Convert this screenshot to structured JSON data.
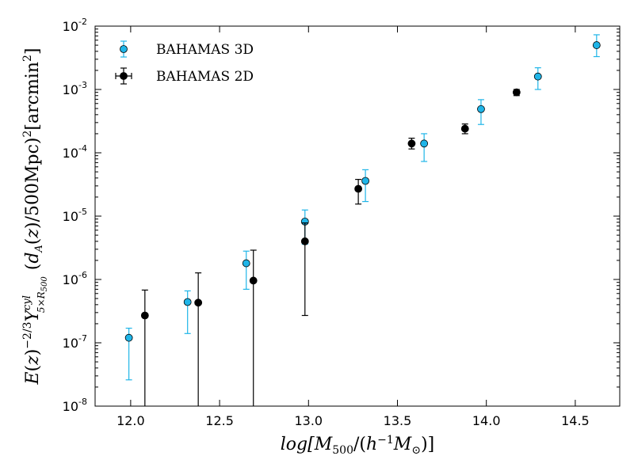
{
  "chart_data": {
    "type": "scatter",
    "title": "",
    "xlabel": "log[M_500/(h^-1 M_sun)]",
    "ylabel": "E(z)^-2/3 Y^cyl_5xR500 (d_A(z)/500Mpc)^2 [arcmin^2]",
    "xscale": "linear",
    "yscale": "log",
    "xlim": [
      11.8,
      14.75
    ],
    "ylim": [
      1e-08,
      0.01
    ],
    "x_ticks": [
      12.0,
      12.5,
      13.0,
      13.5,
      14.0,
      14.5
    ],
    "x_tick_labels": [
      "12.0",
      "12.5",
      "13.0",
      "13.5",
      "14.0",
      "14.5"
    ],
    "y_ticks": [
      1e-08,
      1e-07,
      1e-06,
      1e-05,
      0.0001,
      0.001,
      0.01
    ],
    "y_tick_labels": [
      {
        "base": "10",
        "exp": "-8"
      },
      {
        "base": "10",
        "exp": "-7"
      },
      {
        "base": "10",
        "exp": "-6"
      },
      {
        "base": "10",
        "exp": "-5"
      },
      {
        "base": "10",
        "exp": "-4"
      },
      {
        "base": "10",
        "exp": "-3"
      },
      {
        "base": "10",
        "exp": "-2"
      }
    ],
    "legend_position": "top-left",
    "series": [
      {
        "name": "BAHAMAS 3D",
        "color": "#1fb5e8",
        "marker": "circle",
        "points": [
          {
            "x": 11.99,
            "y": 1.2e-07,
            "ylo": 2.6e-08,
            "yhi": 1.7e-07
          },
          {
            "x": 12.32,
            "y": 4.4e-07,
            "ylo": 1.4e-07,
            "yhi": 6.6e-07
          },
          {
            "x": 12.65,
            "y": 1.8e-06,
            "ylo": 7e-07,
            "yhi": 2.8e-06
          },
          {
            "x": 12.98,
            "y": 8.2e-06,
            "ylo": 3.6e-06,
            "yhi": 1.25e-05
          },
          {
            "x": 13.32,
            "y": 3.6e-05,
            "ylo": 1.7e-05,
            "yhi": 5.4e-05
          },
          {
            "x": 13.65,
            "y": 0.00014,
            "ylo": 7.3e-05,
            "yhi": 0.0002
          },
          {
            "x": 13.97,
            "y": 0.00049,
            "ylo": 0.00028,
            "yhi": 0.00069
          },
          {
            "x": 14.29,
            "y": 0.0016,
            "ylo": 0.001,
            "yhi": 0.0022
          },
          {
            "x": 14.62,
            "y": 0.005,
            "ylo": 0.0033,
            "yhi": 0.0073
          }
        ]
      },
      {
        "name": "BAHAMAS 2D",
        "color": "#000000",
        "marker": "circle",
        "points": [
          {
            "x": 12.08,
            "y": 2.7e-07,
            "ylo": 1e-08,
            "yhi": 6.8e-07
          },
          {
            "x": 12.38,
            "y": 4.3e-07,
            "ylo": 1e-08,
            "yhi": 1.27e-06
          },
          {
            "x": 12.69,
            "y": 9.6e-07,
            "ylo": 1e-08,
            "yhi": 2.9e-06
          },
          {
            "x": 12.98,
            "y": 4e-06,
            "ylo": 2.7e-07,
            "yhi": 7.8e-06
          },
          {
            "x": 13.28,
            "y": 2.7e-05,
            "ylo": 1.55e-05,
            "yhi": 3.8e-05
          },
          {
            "x": 13.58,
            "y": 0.00014,
            "ylo": 0.000115,
            "yhi": 0.00017
          },
          {
            "x": 13.88,
            "y": 0.00024,
            "ylo": 0.0002,
            "yhi": 0.000285
          },
          {
            "x": 14.17,
            "y": 0.0009,
            "ylo": 0.0008,
            "yhi": 0.001
          }
        ]
      }
    ]
  }
}
